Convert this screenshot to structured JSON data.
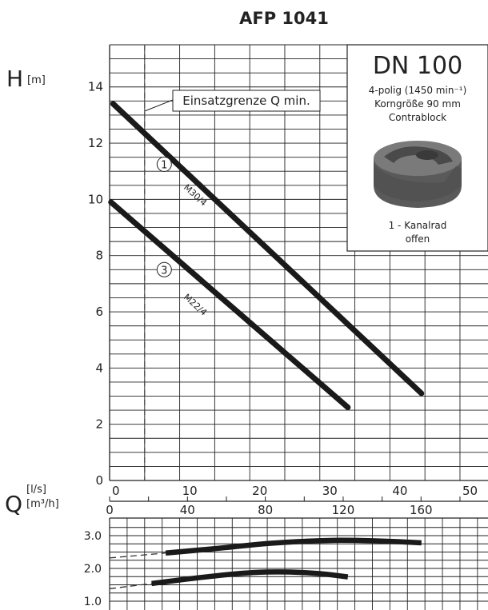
{
  "title": "AFP 1041",
  "chart_data": [
    {
      "type": "line",
      "name": "head_curve",
      "ylabel": "H",
      "ylabel_unit": "[m]",
      "xlabel": "Q",
      "xlabel_unit_1": "[l/s]",
      "xlabel_unit_2": "[m³/h]",
      "xlim": [
        0,
        54
      ],
      "ylim": [
        0,
        15.5
      ],
      "x_ticks": [
        0,
        10,
        20,
        30,
        40,
        50
      ],
      "y_ticks": [
        0,
        2,
        4,
        6,
        8,
        10,
        12,
        14
      ],
      "x2_ticks": [
        0,
        40,
        80,
        120,
        160
      ],
      "x2_factor": 3.6,
      "grid": true,
      "min_flow_line": {
        "x": 5,
        "label": "Einsatzgrenze Q min."
      },
      "series": [
        {
          "name": "M30/4",
          "marker": "1",
          "x": [
            0.5,
            44.5
          ],
          "y": [
            13.4,
            3.1
          ],
          "label_at": [
            10.5,
            10.4
          ],
          "marker_at": [
            7.8,
            11.25
          ]
        },
        {
          "name": "M22/4",
          "marker": "3",
          "x": [
            0.2,
            34
          ],
          "y": [
            9.9,
            2.6
          ],
          "label_at": [
            10.5,
            6.5
          ],
          "marker_at": [
            7.8,
            7.5
          ]
        }
      ]
    },
    {
      "type": "line",
      "name": "power_curve",
      "ylim": [
        1.0,
        3.4
      ],
      "y_ticks": [
        1.0,
        2.0,
        3.0
      ],
      "y_tick_labels": [
        "1.0",
        "2.0",
        "3.0"
      ],
      "xlim": [
        0,
        54
      ],
      "grid": true,
      "series": [
        {
          "x": [
            8,
            15,
            23,
            31,
            35,
            40,
            44.5
          ],
          "y": [
            2.47,
            2.6,
            2.78,
            2.86,
            2.86,
            2.83,
            2.78
          ],
          "dashed_start": [
            0,
            2.32
          ]
        },
        {
          "x": [
            6,
            13,
            20,
            25,
            30,
            34
          ],
          "y": [
            1.54,
            1.73,
            1.88,
            1.9,
            1.85,
            1.74
          ],
          "dashed_start": [
            0,
            1.38
          ]
        }
      ]
    }
  ],
  "inset": {
    "heading": "DN 100",
    "line1": "4-polig (1450 min⁻¹)",
    "line2": "Korngröße 90 mm",
    "line3": "Contrablock",
    "line4": "1 - Kanalrad",
    "line5": "offen"
  }
}
